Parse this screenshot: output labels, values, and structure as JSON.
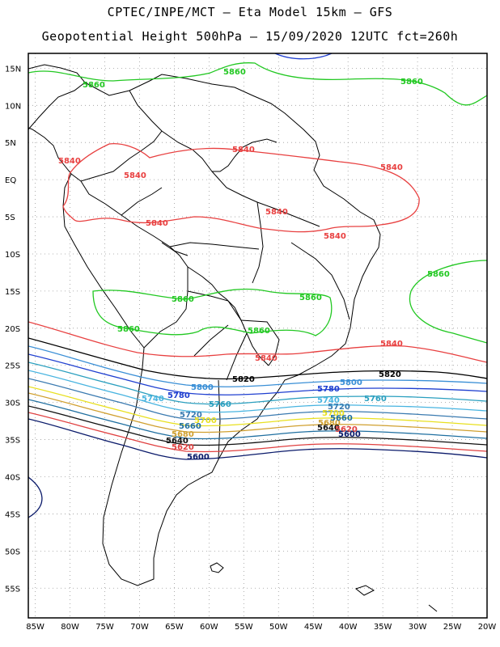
{
  "header": {
    "line1": "CPTEC/INPE/MCT –  Eta Model 15km – GFS",
    "line2": "Geopotential Height 500hPa – 15/09/2020 12UTC fct=260h"
  },
  "map": {
    "lat_labels": [
      "15N",
      "10N",
      "5N",
      "EQ",
      "5S",
      "10S",
      "15S",
      "20S",
      "25S",
      "30S",
      "35S",
      "40S",
      "45S",
      "50S",
      "55S"
    ],
    "lon_labels": [
      "85W",
      "80W",
      "75W",
      "70W",
      "65W",
      "60W",
      "55W",
      "50W",
      "45W",
      "40W",
      "35W",
      "30W",
      "25W",
      "20W"
    ],
    "lon_range": [
      -86,
      -20
    ],
    "lat_range": [
      -59,
      17
    ],
    "grid": true
  },
  "contours": [
    {
      "value": "5860",
      "color": "#22c822",
      "labels": [
        "5860",
        "5860",
        "5860",
        "5860",
        "5860",
        "5860",
        "5860",
        "5860"
      ]
    },
    {
      "value": "5840",
      "color": "#e84040",
      "labels": [
        "5840",
        "5840",
        "5840",
        "5840",
        "5840",
        "5840",
        "5840",
        "5840"
      ]
    },
    {
      "value": "5820",
      "color": "#000000",
      "labels": [
        "5820",
        "5820"
      ]
    },
    {
      "value": "5800",
      "color": "#3a8fd6",
      "labels": [
        "5800",
        "5800"
      ]
    },
    {
      "value": "5780",
      "color": "#1f3fd0",
      "labels": [
        "5780",
        "5780"
      ]
    },
    {
      "value": "5760",
      "color": "#2a9fbf",
      "labels": [
        "5760",
        "5760"
      ]
    },
    {
      "value": "5740",
      "color": "#48b4e0",
      "labels": [
        "5740",
        "5740"
      ]
    },
    {
      "value": "5720",
      "color": "#3a7ab0",
      "labels": [
        "5720",
        "5720"
      ]
    },
    {
      "value": "5700",
      "color": "#e8e020",
      "labels": [
        "5700",
        "5700"
      ]
    },
    {
      "value": "5680",
      "color": "#d0a030",
      "labels": [
        "5680",
        "5680"
      ]
    },
    {
      "value": "5660",
      "color": "#1f6fa0",
      "labels": [
        "5660",
        "5660"
      ]
    },
    {
      "value": "5640",
      "color": "#101010",
      "labels": [
        "5640",
        "5640"
      ]
    },
    {
      "value": "5620",
      "color": "#e04040",
      "labels": [
        "5620",
        "5620"
      ]
    },
    {
      "value": "5600",
      "color": "#0a1a6a",
      "labels": [
        "5600",
        "5600"
      ]
    }
  ]
}
